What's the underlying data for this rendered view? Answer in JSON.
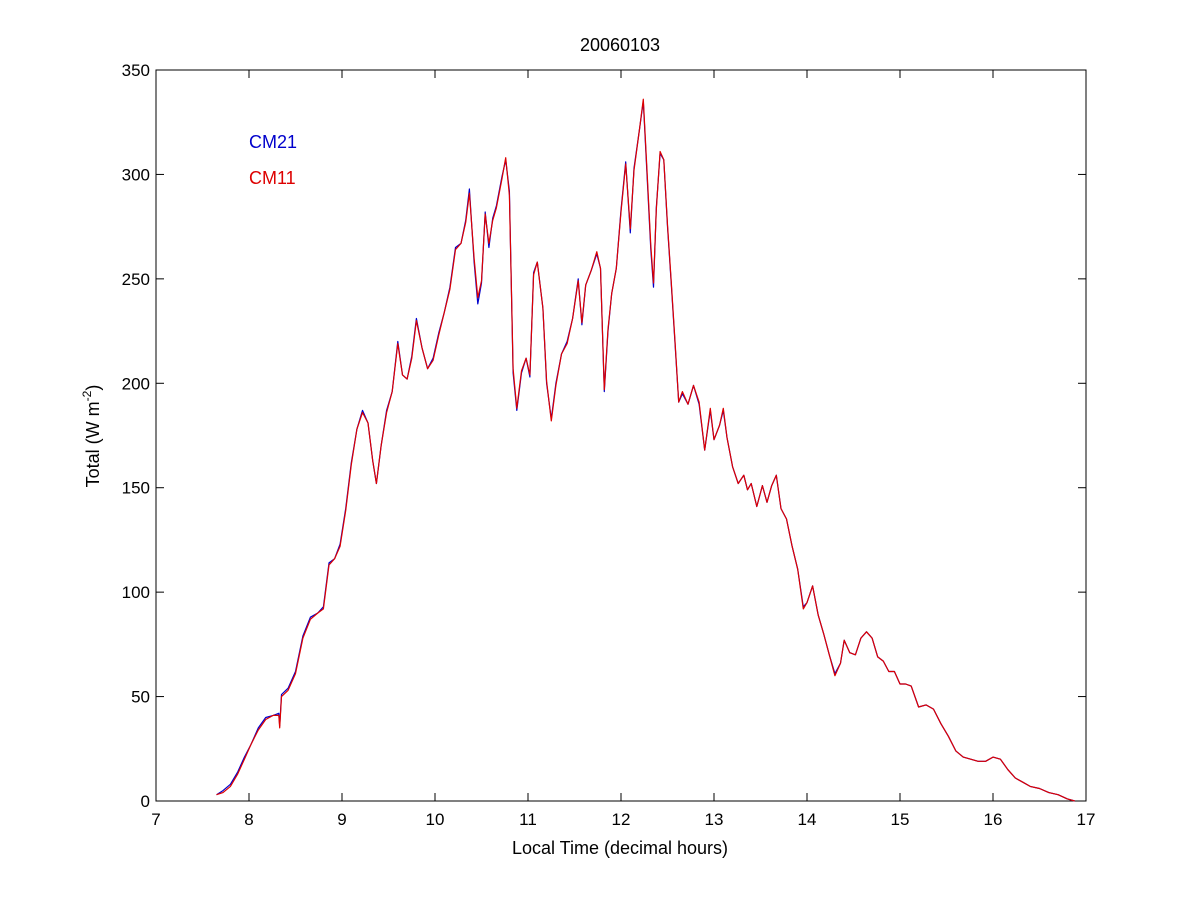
{
  "chart_data": {
    "type": "line",
    "title": "20060103",
    "xlabel": "Local Time (decimal hours)",
    "ylabel_main": "Total (W m",
    "ylabel_sup": "-2",
    "ylabel_close": ")",
    "xlim": [
      7,
      17
    ],
    "ylim": [
      0,
      350
    ],
    "xticks": [
      7,
      8,
      9,
      10,
      11,
      12,
      13,
      14,
      15,
      16,
      17
    ],
    "yticks": [
      0,
      50,
      100,
      150,
      200,
      250,
      300,
      350
    ],
    "grid": false,
    "legend_placement": "top-left",
    "series": [
      {
        "name": "CM21",
        "color": "#0000cc",
        "points": [
          [
            7.65,
            3
          ],
          [
            7.72,
            5
          ],
          [
            7.8,
            8
          ],
          [
            7.88,
            14
          ],
          [
            7.95,
            21
          ],
          [
            8.02,
            27
          ],
          [
            8.1,
            35
          ],
          [
            8.18,
            40
          ],
          [
            8.26,
            41
          ],
          [
            8.32,
            42
          ],
          [
            8.33,
            36
          ],
          [
            8.35,
            51
          ],
          [
            8.42,
            54
          ],
          [
            8.5,
            62
          ],
          [
            8.58,
            79
          ],
          [
            8.66,
            88
          ],
          [
            8.74,
            90
          ],
          [
            8.8,
            93
          ],
          [
            8.86,
            114
          ],
          [
            8.92,
            116
          ],
          [
            8.98,
            123
          ],
          [
            9.04,
            140
          ],
          [
            9.1,
            162
          ],
          [
            9.16,
            178
          ],
          [
            9.22,
            187
          ],
          [
            9.28,
            181
          ],
          [
            9.33,
            163
          ],
          [
            9.37,
            152
          ],
          [
            9.42,
            170
          ],
          [
            9.48,
            187
          ],
          [
            9.54,
            196
          ],
          [
            9.6,
            220
          ],
          [
            9.65,
            204
          ],
          [
            9.7,
            202
          ],
          [
            9.75,
            213
          ],
          [
            9.8,
            231
          ],
          [
            9.86,
            217
          ],
          [
            9.92,
            207
          ],
          [
            9.98,
            212
          ],
          [
            10.04,
            224
          ],
          [
            10.1,
            234
          ],
          [
            10.16,
            246
          ],
          [
            10.22,
            265
          ],
          [
            10.28,
            267
          ],
          [
            10.33,
            278
          ],
          [
            10.37,
            293
          ],
          [
            10.42,
            258
          ],
          [
            10.46,
            238
          ],
          [
            10.5,
            248
          ],
          [
            10.54,
            282
          ],
          [
            10.58,
            265
          ],
          [
            10.62,
            279
          ],
          [
            10.66,
            285
          ],
          [
            10.72,
            299
          ],
          [
            10.76,
            307
          ],
          [
            10.8,
            292
          ],
          [
            10.84,
            205
          ],
          [
            10.88,
            187
          ],
          [
            10.93,
            205
          ],
          [
            10.98,
            212
          ],
          [
            11.02,
            203
          ],
          [
            11.06,
            253
          ],
          [
            11.1,
            258
          ],
          [
            11.16,
            236
          ],
          [
            11.2,
            200
          ],
          [
            11.25,
            183
          ],
          [
            11.3,
            200
          ],
          [
            11.36,
            214
          ],
          [
            11.42,
            220
          ],
          [
            11.48,
            231
          ],
          [
            11.54,
            250
          ],
          [
            11.58,
            228
          ],
          [
            11.62,
            247
          ],
          [
            11.68,
            254
          ],
          [
            11.74,
            262
          ],
          [
            11.78,
            255
          ],
          [
            11.82,
            196
          ],
          [
            11.86,
            225
          ],
          [
            11.9,
            243
          ],
          [
            11.95,
            255
          ],
          [
            12.0,
            283
          ],
          [
            12.05,
            306
          ],
          [
            12.1,
            272
          ],
          [
            12.14,
            303
          ],
          [
            12.2,
            322
          ],
          [
            12.24,
            335
          ],
          [
            12.28,
            300
          ],
          [
            12.32,
            264
          ],
          [
            12.35,
            246
          ],
          [
            12.38,
            284
          ],
          [
            12.42,
            310
          ],
          [
            12.46,
            307
          ],
          [
            12.5,
            275
          ],
          [
            12.54,
            248
          ],
          [
            12.58,
            220
          ],
          [
            12.62,
            191
          ],
          [
            12.66,
            195
          ],
          [
            12.72,
            190
          ],
          [
            12.78,
            199
          ],
          [
            12.84,
            190
          ],
          [
            12.9,
            168
          ],
          [
            12.96,
            187
          ],
          [
            13.0,
            173
          ],
          [
            13.06,
            180
          ],
          [
            13.1,
            187
          ],
          [
            13.14,
            174
          ],
          [
            13.2,
            160
          ],
          [
            13.26,
            152
          ],
          [
            13.32,
            156
          ],
          [
            13.36,
            149
          ],
          [
            13.4,
            152
          ],
          [
            13.46,
            141
          ],
          [
            13.52,
            151
          ],
          [
            13.57,
            143
          ],
          [
            13.62,
            151
          ],
          [
            13.67,
            156
          ],
          [
            13.72,
            140
          ],
          [
            13.78,
            135
          ],
          [
            13.84,
            122
          ],
          [
            13.9,
            111
          ],
          [
            13.96,
            93
          ],
          [
            14.0,
            95
          ],
          [
            14.06,
            103
          ],
          [
            14.12,
            89
          ],
          [
            14.18,
            80
          ],
          [
            14.24,
            70
          ],
          [
            14.3,
            61
          ],
          [
            14.36,
            66
          ],
          [
            14.4,
            77
          ],
          [
            14.46,
            71
          ],
          [
            14.52,
            70
          ],
          [
            14.58,
            78
          ],
          [
            14.64,
            81
          ],
          [
            14.7,
            78
          ],
          [
            14.76,
            69
          ],
          [
            14.82,
            67
          ],
          [
            14.88,
            62
          ],
          [
            14.94,
            62
          ],
          [
            15.0,
            56
          ],
          [
            15.06,
            56
          ],
          [
            15.12,
            55
          ],
          [
            15.2,
            45
          ],
          [
            15.28,
            46
          ],
          [
            15.36,
            44
          ],
          [
            15.44,
            37
          ],
          [
            15.52,
            31
          ],
          [
            15.6,
            24
          ],
          [
            15.68,
            21
          ],
          [
            15.76,
            20
          ],
          [
            15.84,
            19
          ],
          [
            15.92,
            19
          ],
          [
            16.0,
            21
          ],
          [
            16.08,
            20
          ],
          [
            16.16,
            15
          ],
          [
            16.24,
            11
          ],
          [
            16.32,
            9
          ],
          [
            16.4,
            7
          ],
          [
            16.5,
            6
          ],
          [
            16.6,
            4
          ],
          [
            16.7,
            3
          ],
          [
            16.8,
            1
          ],
          [
            16.88,
            0
          ]
        ]
      },
      {
        "name": "CM11",
        "color": "#dd0000",
        "points": [
          [
            7.65,
            3
          ],
          [
            7.72,
            4
          ],
          [
            7.8,
            7
          ],
          [
            7.88,
            13
          ],
          [
            7.95,
            20
          ],
          [
            8.02,
            27
          ],
          [
            8.1,
            34
          ],
          [
            8.18,
            39
          ],
          [
            8.26,
            41
          ],
          [
            8.32,
            41
          ],
          [
            8.33,
            35
          ],
          [
            8.35,
            50
          ],
          [
            8.42,
            53
          ],
          [
            8.5,
            61
          ],
          [
            8.58,
            78
          ],
          [
            8.66,
            87
          ],
          [
            8.74,
            90
          ],
          [
            8.8,
            92
          ],
          [
            8.86,
            113
          ],
          [
            8.92,
            116
          ],
          [
            8.98,
            122
          ],
          [
            9.04,
            139
          ],
          [
            9.1,
            161
          ],
          [
            9.16,
            178
          ],
          [
            9.22,
            186
          ],
          [
            9.28,
            181
          ],
          [
            9.33,
            163
          ],
          [
            9.37,
            152
          ],
          [
            9.42,
            170
          ],
          [
            9.48,
            186
          ],
          [
            9.54,
            196
          ],
          [
            9.6,
            219
          ],
          [
            9.65,
            204
          ],
          [
            9.7,
            202
          ],
          [
            9.75,
            212
          ],
          [
            9.8,
            230
          ],
          [
            9.86,
            217
          ],
          [
            9.92,
            207
          ],
          [
            9.98,
            211
          ],
          [
            10.04,
            223
          ],
          [
            10.1,
            234
          ],
          [
            10.16,
            245
          ],
          [
            10.22,
            264
          ],
          [
            10.28,
            267
          ],
          [
            10.33,
            277
          ],
          [
            10.37,
            291
          ],
          [
            10.42,
            260
          ],
          [
            10.46,
            241
          ],
          [
            10.5,
            249
          ],
          [
            10.54,
            281
          ],
          [
            10.58,
            267
          ],
          [
            10.62,
            278
          ],
          [
            10.66,
            284
          ],
          [
            10.72,
            298
          ],
          [
            10.76,
            308
          ],
          [
            10.8,
            290
          ],
          [
            10.84,
            207
          ],
          [
            10.88,
            188
          ],
          [
            10.93,
            206
          ],
          [
            10.98,
            212
          ],
          [
            11.02,
            204
          ],
          [
            11.06,
            252
          ],
          [
            11.1,
            258
          ],
          [
            11.16,
            236
          ],
          [
            11.2,
            201
          ],
          [
            11.25,
            182
          ],
          [
            11.3,
            199
          ],
          [
            11.36,
            214
          ],
          [
            11.42,
            219
          ],
          [
            11.48,
            231
          ],
          [
            11.54,
            249
          ],
          [
            11.58,
            229
          ],
          [
            11.62,
            247
          ],
          [
            11.68,
            254
          ],
          [
            11.74,
            263
          ],
          [
            11.78,
            255
          ],
          [
            11.82,
            197
          ],
          [
            11.86,
            226
          ],
          [
            11.9,
            243
          ],
          [
            11.95,
            255
          ],
          [
            12.0,
            282
          ],
          [
            12.05,
            305
          ],
          [
            12.1,
            274
          ],
          [
            12.14,
            302
          ],
          [
            12.2,
            322
          ],
          [
            12.24,
            336
          ],
          [
            12.28,
            302
          ],
          [
            12.32,
            266
          ],
          [
            12.35,
            248
          ],
          [
            12.38,
            283
          ],
          [
            12.42,
            311
          ],
          [
            12.46,
            307
          ],
          [
            12.5,
            276
          ],
          [
            12.54,
            249
          ],
          [
            12.58,
            221
          ],
          [
            12.62,
            191
          ],
          [
            12.66,
            196
          ],
          [
            12.72,
            190
          ],
          [
            12.78,
            199
          ],
          [
            12.84,
            191
          ],
          [
            12.9,
            168
          ],
          [
            12.96,
            188
          ],
          [
            13.0,
            173
          ],
          [
            13.06,
            180
          ],
          [
            13.1,
            188
          ],
          [
            13.14,
            174
          ],
          [
            13.2,
            160
          ],
          [
            13.26,
            152
          ],
          [
            13.32,
            156
          ],
          [
            13.36,
            149
          ],
          [
            13.4,
            152
          ],
          [
            13.46,
            141
          ],
          [
            13.52,
            151
          ],
          [
            13.57,
            143
          ],
          [
            13.62,
            151
          ],
          [
            13.67,
            156
          ],
          [
            13.72,
            140
          ],
          [
            13.78,
            135
          ],
          [
            13.84,
            122
          ],
          [
            13.9,
            111
          ],
          [
            13.96,
            92
          ],
          [
            14.0,
            95
          ],
          [
            14.06,
            103
          ],
          [
            14.12,
            89
          ],
          [
            14.18,
            80
          ],
          [
            14.24,
            70
          ],
          [
            14.3,
            60
          ],
          [
            14.36,
            66
          ],
          [
            14.4,
            77
          ],
          [
            14.46,
            71
          ],
          [
            14.52,
            70
          ],
          [
            14.58,
            78
          ],
          [
            14.64,
            81
          ],
          [
            14.7,
            78
          ],
          [
            14.76,
            69
          ],
          [
            14.82,
            67
          ],
          [
            14.88,
            62
          ],
          [
            14.94,
            62
          ],
          [
            15.0,
            56
          ],
          [
            15.06,
            56
          ],
          [
            15.12,
            55
          ],
          [
            15.2,
            45
          ],
          [
            15.28,
            46
          ],
          [
            15.36,
            44
          ],
          [
            15.44,
            37
          ],
          [
            15.52,
            31
          ],
          [
            15.6,
            24
          ],
          [
            15.68,
            21
          ],
          [
            15.76,
            20
          ],
          [
            15.84,
            19
          ],
          [
            15.92,
            19
          ],
          [
            16.0,
            21
          ],
          [
            16.08,
            20
          ],
          [
            16.16,
            15
          ],
          [
            16.24,
            11
          ],
          [
            16.32,
            9
          ],
          [
            16.4,
            7
          ],
          [
            16.5,
            6
          ],
          [
            16.6,
            4
          ],
          [
            16.7,
            3
          ],
          [
            16.8,
            1
          ],
          [
            16.88,
            0
          ]
        ]
      }
    ]
  }
}
